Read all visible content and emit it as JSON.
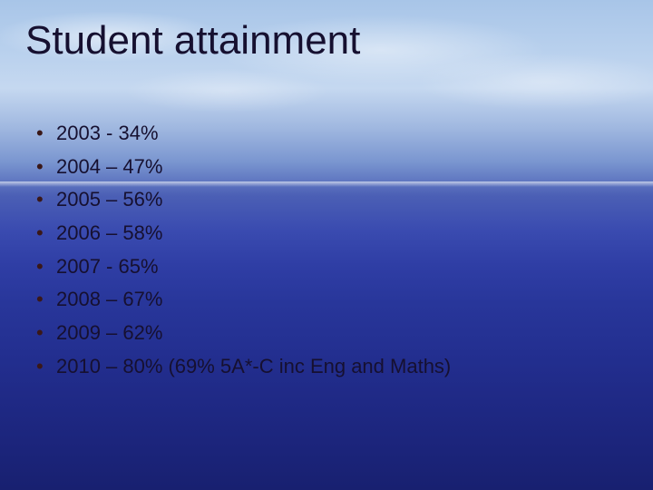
{
  "slide": {
    "title": "Student attainment",
    "title_fontsize": 44,
    "title_color": "#161030",
    "body_fontsize": 22,
    "body_color": "#161030",
    "bullet_glyph": "•",
    "bullet_color": "#3a1818",
    "font_family": "Comic Sans MS",
    "background": {
      "type": "ocean-sky-gradient",
      "stops": [
        "#a8c5e8",
        "#b8d0ed",
        "#c5d8f0",
        "#a0b8e0",
        "#7a96d0",
        "#4b5fb5",
        "#3a4bb0",
        "#2f3ea5",
        "#28369a",
        "#232f90",
        "#1f2985",
        "#1b247a",
        "#182070"
      ]
    },
    "items": [
      {
        "text": "2003 - 34%"
      },
      {
        "text": "2004 – 47%"
      },
      {
        "text": "2005 – 56%"
      },
      {
        "text": "2006 – 58%"
      },
      {
        "text": "2007 - 65%"
      },
      {
        "text": "2008 – 67%"
      },
      {
        "text": "2009 – 62%"
      },
      {
        "text": "2010 – 80%",
        "note": "(69% 5A*-C inc Eng and Maths)"
      }
    ]
  }
}
